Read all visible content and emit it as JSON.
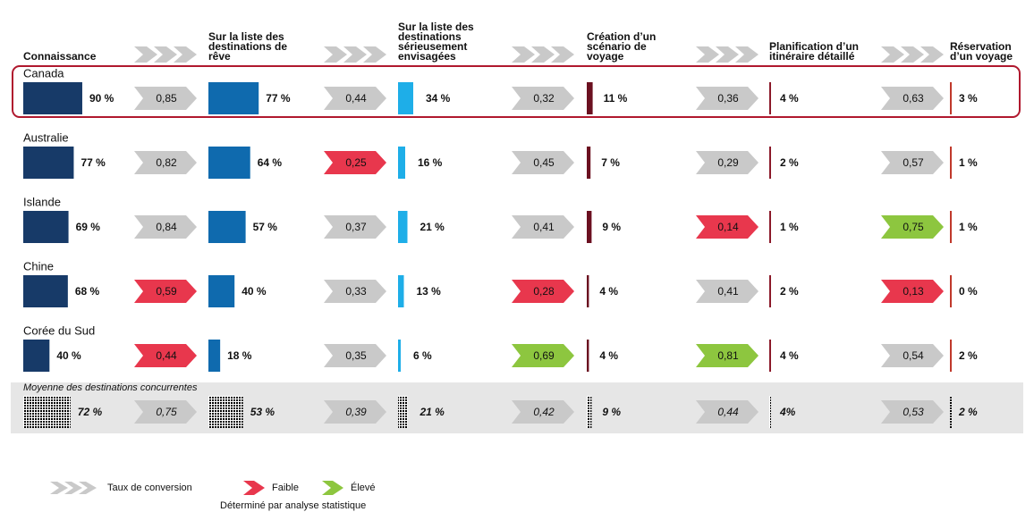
{
  "chart_data": {
    "type": "funnel",
    "stages": [
      {
        "label_lines": [
          "Connaissance"
        ],
        "color": "#1f3864",
        "bar_color": "#173a68"
      },
      {
        "label_lines": [
          "Sur la liste des",
          "destinations de",
          "rêve"
        ],
        "color": "#1f6fb4",
        "bar_color": "#0f6aae"
      },
      {
        "label_lines": [
          "Sur la liste des",
          "destinations",
          "sérieusement",
          "envisagées"
        ],
        "color": "#29abe2",
        "bar_color": "#1eaee8"
      },
      {
        "label_lines": [
          "Création d’un",
          "scénario de",
          "voyage"
        ],
        "color": "#7b1c1c",
        "bar_color": "#6b1020"
      },
      {
        "label_lines": [
          "Planification d’un",
          "itinéraire détaillé"
        ],
        "color": "#a31f34",
        "bar_color": "#8b1a2a"
      },
      {
        "label_lines": [
          "Réservation",
          "d’un voyage"
        ],
        "color": "#c8102e",
        "bar_color": "#c0392b"
      }
    ],
    "level_colors": {
      "neutral": "#c9c9c9",
      "low": "#e8374d",
      "high": "#8dc63f"
    },
    "highlight": "Canada",
    "rows": [
      {
        "name": "Canada",
        "values": [
          90,
          77,
          34,
          11,
          4,
          3
        ],
        "value_labels": [
          "90 %",
          "77 %",
          "34 %",
          "11 %",
          "4 %",
          "3 %"
        ],
        "conversions": [
          0.85,
          0.44,
          0.32,
          0.36,
          0.63
        ],
        "conversion_labels": [
          "0,85",
          "0,44",
          "0,32",
          "0,36",
          "0,63"
        ],
        "conversion_levels": [
          "neutral",
          "neutral",
          "neutral",
          "neutral",
          "neutral"
        ]
      },
      {
        "name": "Australie",
        "values": [
          77,
          64,
          16,
          7,
          2,
          1
        ],
        "value_labels": [
          "77 %",
          "64 %",
          "16 %",
          "7 %",
          "2 %",
          "1 %"
        ],
        "conversions": [
          0.82,
          0.25,
          0.45,
          0.29,
          0.57
        ],
        "conversion_labels": [
          "0,82",
          "0,25",
          "0,45",
          "0,29",
          "0,57"
        ],
        "conversion_levels": [
          "neutral",
          "low",
          "neutral",
          "neutral",
          "neutral"
        ]
      },
      {
        "name": "Islande",
        "values": [
          69,
          57,
          21,
          9,
          1,
          1
        ],
        "value_labels": [
          "69 %",
          "57 %",
          "21 %",
          "9 %",
          "1 %",
          "1 %"
        ],
        "conversions": [
          0.84,
          0.37,
          0.41,
          0.14,
          0.75
        ],
        "conversion_labels": [
          "0,84",
          "0,37",
          "0,41",
          "0,14",
          "0,75"
        ],
        "conversion_levels": [
          "neutral",
          "neutral",
          "neutral",
          "low",
          "high"
        ]
      },
      {
        "name": "Chine",
        "values": [
          68,
          40,
          13,
          4,
          2,
          0
        ],
        "value_labels": [
          "68 %",
          "40 %",
          "13 %",
          "4 %",
          "2 %",
          "0 %"
        ],
        "conversions": [
          0.59,
          0.33,
          0.28,
          0.41,
          0.13
        ],
        "conversion_labels": [
          "0,59",
          "0,33",
          "0,28",
          "0,41",
          "0,13"
        ],
        "conversion_levels": [
          "low",
          "neutral",
          "low",
          "neutral",
          "low"
        ]
      },
      {
        "name": "Corée du Sud",
        "values": [
          40,
          18,
          6,
          4,
          4,
          2
        ],
        "value_labels": [
          "40 %",
          "18 %",
          "6 %",
          "4 %",
          "4 %",
          "2 %"
        ],
        "conversions": [
          0.44,
          0.35,
          0.69,
          0.81,
          0.54
        ],
        "conversion_labels": [
          "0,44",
          "0,35",
          "0,69",
          "0,81",
          "0,54"
        ],
        "conversion_levels": [
          "low",
          "neutral",
          "high",
          "high",
          "neutral"
        ]
      }
    ],
    "average": {
      "name": "Moyenne des destinations concurrentes",
      "values": [
        72,
        53,
        21,
        9,
        4,
        2
      ],
      "value_labels": [
        "72 %",
        "53 %",
        "21 %",
        "9 %",
        "4%",
        "2 %"
      ],
      "conversions": [
        0.75,
        0.39,
        0.42,
        0.44,
        0.53
      ],
      "conversion_labels": [
        "0,75",
        "0,39",
        "0,42",
        "0,44",
        "0,53"
      ]
    },
    "legend": {
      "entries": [
        {
          "label": "Taux de conversion",
          "level": "neutral"
        },
        {
          "label": "Faible",
          "level": "low"
        },
        {
          "label": "Élevé",
          "level": "high"
        }
      ],
      "note": "Déterminé par analyse statistique"
    }
  }
}
